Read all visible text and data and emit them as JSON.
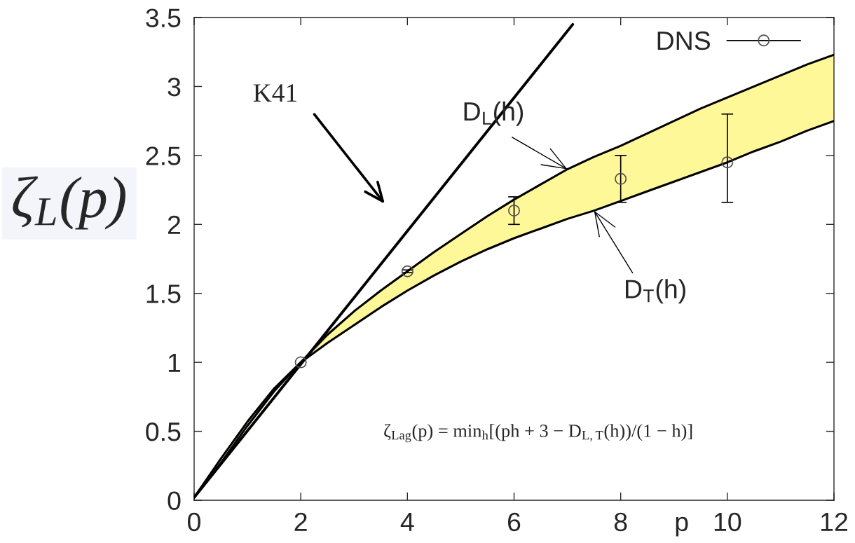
{
  "chart_data": {
    "type": "line",
    "xlabel": "p",
    "ylabel": "ζ$_{L}$(p)",
    "xlim": [
      0,
      12
    ],
    "xticks": [
      0,
      2,
      4,
      6,
      8,
      10,
      12
    ],
    "ylim": [
      0,
      3.5
    ],
    "yticks": [
      0,
      0.5,
      1,
      1.5,
      2,
      2.5,
      3,
      3.5
    ],
    "legend": "top right",
    "series": [
      {
        "x": [
          0,
          0.5,
          1,
          1.5,
          2,
          2.5,
          3,
          3.5,
          4,
          4.5,
          5,
          5.5,
          6,
          6.5,
          7,
          7.5,
          8,
          8.5,
          9,
          9.5,
          10,
          10.5,
          11,
          11.5,
          12
        ],
        "values": [
          0.02,
          0.3,
          0.57,
          0.81,
          1.0,
          1.2,
          1.37,
          1.52,
          1.66,
          1.8,
          1.93,
          2.06,
          2.18,
          2.29,
          2.4,
          2.49,
          2.57,
          2.66,
          2.75,
          2.84,
          2.92,
          3.0,
          3.08,
          3.16,
          3.23
        ],
        "lower": [
          0.02,
          0.27,
          0.54,
          0.79,
          1.0,
          1.14,
          1.27,
          1.4,
          1.52,
          1.63,
          1.73,
          1.82,
          1.9,
          1.97,
          2.04,
          2.1,
          2.17,
          2.24,
          2.31,
          2.38,
          2.45,
          2.53,
          2.6,
          2.68,
          2.75
        ],
        "upper": [
          0.02,
          0.3,
          0.57,
          0.81,
          1.0,
          1.2,
          1.37,
          1.52,
          1.66,
          1.8,
          1.93,
          2.06,
          2.18,
          2.29,
          2.4,
          2.49,
          2.57,
          2.66,
          2.75,
          2.84,
          2.92,
          3.0,
          3.08,
          3.16,
          3.23
        ],
        "color": "#000000"
      },
      {
        "x": [
          0,
          0.5,
          1,
          1.5,
          2,
          2.5,
          3,
          3.5,
          4,
          4.5,
          5,
          5.5,
          6,
          6.5,
          7,
          7.5,
          8,
          8.5,
          9,
          9.5,
          10,
          10.5,
          11,
          11.5,
          12
        ],
        "values": [
          0.02,
          0.27,
          0.54,
          0.79,
          1.0,
          1.14,
          1.27,
          1.4,
          1.52,
          1.63,
          1.73,
          1.82,
          1.9,
          1.97,
          2.04,
          2.1,
          2.17,
          2.24,
          2.31,
          2.38,
          2.45,
          2.53,
          2.6,
          2.68,
          2.75
        ],
        "color": "#000000"
      },
      {
        "x": [
          0,
          7.1
        ],
        "values": [
          0.02,
          3.45
        ],
        "color": "#000000"
      },
      {
        "type": "scatter",
        "name": "DNS",
        "marker": "circle",
        "x": [
          2,
          4,
          6,
          8,
          10
        ],
        "values": [
          1.0,
          1.66,
          2.1,
          2.33,
          2.45
        ],
        "errors": [
          null,
          0.01,
          0.1,
          0.17,
          [
            2.16,
            2.8
          ]
        ],
        "color": "#505050"
      }
    ],
    "annotations": [
      "K41",
      {
        "text": "D$_{L}$(h)",
        "x": 7,
        "y": 2.4
      },
      {
        "text": "D$_{T}$(h)",
        "x": 7.5,
        "y": 2.1
      },
      "ζ$_{Lag}$(p) = min$_{h}$[(ph + 3 − D$_{L,T}$(h))/(1 − h)]"
    ]
  }
}
